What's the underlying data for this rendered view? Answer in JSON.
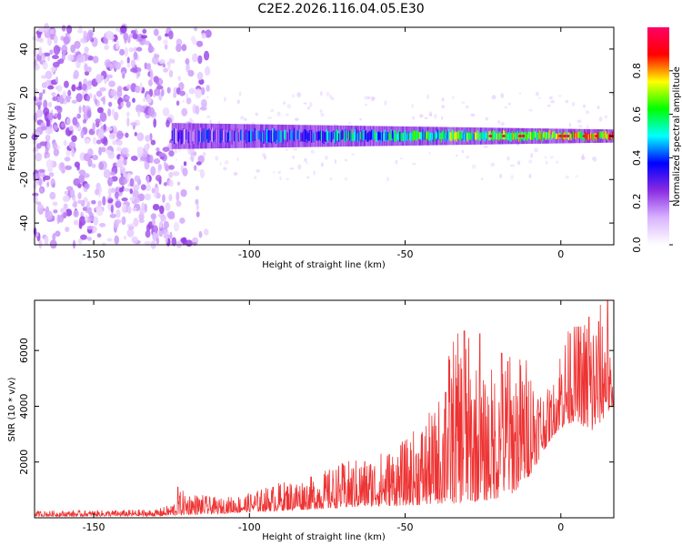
{
  "title": "C2E2.2026.116.04.05.E30",
  "charts": [
    {
      "type": "heatmap",
      "xlabel": "Height of straight line (km)",
      "ylabel": "Frequency (Hz)",
      "xlim": [
        -169,
        17
      ],
      "ylim": [
        -50,
        50
      ],
      "xticks": [
        "-150",
        "-100",
        "-50",
        "0"
      ],
      "xtick_values": [
        -150,
        -100,
        -50,
        0
      ],
      "yticks": [
        "40",
        "20",
        "0",
        "-20",
        "-40"
      ],
      "ytick_values": [
        40,
        20,
        0,
        -20,
        -40
      ],
      "colorbar": {
        "label": "Normalized spectral amplitude",
        "range": [
          0,
          1
        ],
        "ticks": [
          "0.0",
          "0.2",
          "0.4",
          "0.6",
          "0.8"
        ],
        "tick_values": [
          0.0,
          0.2,
          0.4,
          0.6,
          0.8
        ],
        "colors": [
          "#ffffff",
          "#d9b3ff",
          "#8a2be2",
          "#0000ff",
          "#00ffff",
          "#00ff00",
          "#ffff00",
          "#ff0000",
          "#ff0066"
        ]
      },
      "band": {
        "description": "noise region left of about -125 km; narrow signal band near 0 Hz from -125 km to 17 km",
        "noise_end_x": -125,
        "signal_start_x": -125,
        "center_hz": 0,
        "halfwidth_hz_start": 6,
        "halfwidth_hz_end": 3
      }
    },
    {
      "type": "line",
      "xlabel": "Height of straight line (km)",
      "ylabel": "SNR (10 * v/v)",
      "xlim": [
        -169,
        17
      ],
      "ylim": [
        0,
        7800
      ],
      "xticks": [
        "-150",
        "-100",
        "-50",
        "0"
      ],
      "xtick_values": [
        -150,
        -100,
        -50,
        0
      ],
      "yticks": [
        "6000",
        "4000",
        "2000"
      ],
      "ytick_values": [
        6000,
        4000,
        2000
      ],
      "color": "#ee3333",
      "envelope": {
        "x": [
          -169,
          -130,
          -125,
          -122,
          -110,
          -100,
          -90,
          -80,
          -70,
          -60,
          -50,
          -45,
          -40,
          -35,
          -30,
          -25,
          -20,
          -15,
          -10,
          -5,
          -2,
          0,
          5,
          10,
          14,
          17
        ],
        "low": [
          50,
          60,
          80,
          100,
          150,
          200,
          250,
          300,
          350,
          400,
          450,
          450,
          500,
          500,
          550,
          600,
          700,
          900,
          1500,
          2500,
          3000,
          3200,
          3500,
          3000,
          3600,
          4000
        ],
        "high": [
          250,
          300,
          500,
          1000,
          700,
          900,
          1300,
          1500,
          2000,
          2300,
          2800,
          3500,
          4000,
          6600,
          6700,
          5000,
          5900,
          6000,
          5900,
          4500,
          5000,
          6600,
          7000,
          7600,
          7800,
          4500
        ],
        "peaks": [
          [
            -123,
            1100
          ],
          [
            -37,
            4500
          ],
          [
            -31,
            6700
          ],
          [
            -26,
            6600
          ],
          [
            -19,
            5900
          ],
          [
            -17,
            5600
          ],
          [
            3,
            6600
          ],
          [
            9,
            7200
          ],
          [
            15,
            7800
          ]
        ]
      }
    }
  ]
}
